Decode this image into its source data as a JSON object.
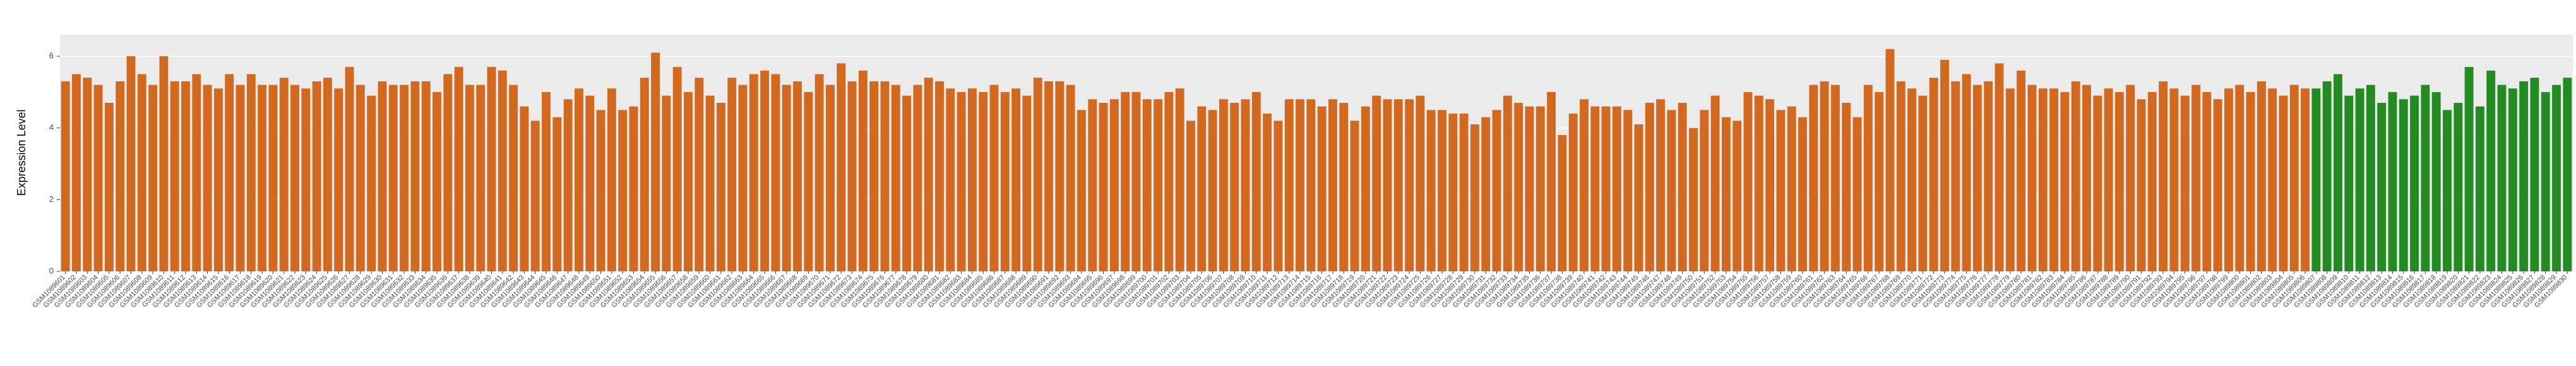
{
  "chart_data": {
    "type": "bar",
    "y_label": "Expression Level",
    "ylim": [
      0,
      6.6
    ],
    "yticks": [
      0,
      2,
      4,
      6
    ],
    "grid": true,
    "background": "#ebebeb",
    "series": [
      {
        "color": "#d2691e",
        "categories": [
          "GSM1089601",
          "GSM1089602",
          "GSM1089603",
          "GSM1089604",
          "GSM1089605",
          "GSM1089606",
          "GSM1089607",
          "GSM1089608",
          "GSM1089609",
          "GSM1089610",
          "GSM1089611",
          "GSM1089612",
          "GSM1089613",
          "GSM1089614",
          "GSM1089615",
          "GSM1089616",
          "GSM1089617",
          "GSM1089618",
          "GSM1089619",
          "GSM1089620",
          "GSM1089621",
          "GSM1089622",
          "GSM1089623",
          "GSM1089624",
          "GSM1089625",
          "GSM1089626",
          "GSM1089627",
          "GSM1089628",
          "GSM1089629",
          "GSM1089630",
          "GSM1089631",
          "GSM1089632",
          "GSM1089633",
          "GSM1089634",
          "GSM1089635",
          "GSM1089636",
          "GSM1089637",
          "GSM1089638",
          "GSM1089639",
          "GSM1089640",
          "GSM1089641",
          "GSM1089642",
          "GSM1089643",
          "GSM1089644",
          "GSM1089645",
          "GSM1089646",
          "GSM1089647",
          "GSM1089648",
          "GSM1089649",
          "GSM1089650",
          "GSM1089651",
          "GSM1089652",
          "GSM1089653",
          "GSM1089654",
          "GSM1089655",
          "GSM1089656",
          "GSM1089657",
          "GSM1089658",
          "GSM1089659",
          "GSM1089660",
          "GSM1089661",
          "GSM1089662",
          "GSM1089663",
          "GSM1089664",
          "GSM1089665",
          "GSM1089666",
          "GSM1089667",
          "GSM1089668",
          "GSM1089669",
          "GSM1089670",
          "GSM1089671",
          "GSM1089672",
          "GSM1089673",
          "GSM1089674",
          "GSM1089675",
          "GSM1089676",
          "GSM1089677",
          "GSM1089678",
          "GSM1089679",
          "GSM1089680",
          "GSM1089681",
          "GSM1089682",
          "GSM1089683",
          "GSM1089684",
          "GSM1089685",
          "GSM1089686",
          "GSM1089687",
          "GSM1089688",
          "GSM1089689",
          "GSM1089690",
          "GSM1089691",
          "GSM1089692",
          "GSM1089693",
          "GSM1089694",
          "GSM1089695",
          "GSM1089696",
          "GSM1089697",
          "GSM1089698",
          "GSM1089699",
          "GSM1089700",
          "GSM1089701",
          "GSM1089702",
          "GSM1089703",
          "GSM1089704",
          "GSM1089705",
          "GSM1089706",
          "GSM1089707",
          "GSM1089708",
          "GSM1089709",
          "GSM1089710",
          "GSM1089711",
          "GSM1089712",
          "GSM1089713",
          "GSM1089714",
          "GSM1089715",
          "GSM1089716",
          "GSM1089717",
          "GSM1089718",
          "GSM1089719",
          "GSM1089720",
          "GSM1089721",
          "GSM1089722",
          "GSM1089723",
          "GSM1089724",
          "GSM1089725",
          "GSM1089726",
          "GSM1089727",
          "GSM1089728",
          "GSM1089729",
          "GSM1089730",
          "GSM1089731",
          "GSM1089732",
          "GSM1089733",
          "GSM1089734",
          "GSM1089735",
          "GSM1089736",
          "GSM1089737",
          "GSM1089738",
          "GSM1089739",
          "GSM1089740",
          "GSM1089741",
          "GSM1089742",
          "GSM1089743",
          "GSM1089744",
          "GSM1089745",
          "GSM1089746",
          "GSM1089747",
          "GSM1089748",
          "GSM1089749",
          "GSM1089750",
          "GSM1089751",
          "GSM1089752",
          "GSM1089753",
          "GSM1089754",
          "GSM1089755",
          "GSM1089756",
          "GSM1089757",
          "GSM1089758",
          "GSM1089759",
          "GSM1089760",
          "GSM1089761",
          "GSM1089762",
          "GSM1089763",
          "GSM1089764",
          "GSM1089765",
          "GSM1089766",
          "GSM1089767",
          "GSM1089768",
          "GSM1089769",
          "GSM1089770",
          "GSM1089771",
          "GSM1089772",
          "GSM1089773",
          "GSM1089774",
          "GSM1089775",
          "GSM1089776",
          "GSM1089777",
          "GSM1089778",
          "GSM1089779",
          "GSM1089780",
          "GSM1089781",
          "GSM1089782",
          "GSM1089783",
          "GSM1089784",
          "GSM1089785",
          "GSM1089786",
          "GSM1089787",
          "GSM1089788",
          "GSM1089789",
          "GSM1089790",
          "GSM1089791",
          "GSM1089792",
          "GSM1089793",
          "GSM1089794",
          "GSM1089795",
          "GSM1089796",
          "GSM1089797",
          "GSM1089798",
          "GSM1089799",
          "GSM1089800",
          "GSM1089801",
          "GSM1089802",
          "GSM1089803",
          "GSM1089804",
          "GSM1089805",
          "GSM1089806"
        ],
        "values": [
          5.3,
          5.5,
          5.4,
          5.2,
          4.7,
          5.3,
          6.0,
          5.5,
          5.2,
          6.0,
          5.3,
          5.3,
          5.5,
          5.2,
          5.1,
          5.5,
          5.2,
          5.5,
          5.2,
          5.2,
          5.4,
          5.2,
          5.1,
          5.3,
          5.4,
          5.1,
          5.7,
          5.2,
          4.9,
          5.3,
          5.2,
          5.2,
          5.3,
          5.3,
          5.0,
          5.5,
          5.7,
          5.2,
          5.2,
          5.7,
          5.6,
          5.2,
          4.6,
          4.2,
          5.0,
          4.3,
          4.8,
          5.1,
          4.9,
          4.5,
          5.1,
          4.5,
          4.6,
          5.4,
          6.1,
          4.9,
          5.7,
          5.0,
          5.4,
          4.9,
          4.7,
          5.4,
          5.2,
          5.5,
          5.6,
          5.5,
          5.2,
          5.3,
          5.0,
          5.5,
          5.2,
          5.8,
          5.3,
          5.6,
          5.3,
          5.3,
          5.2,
          4.9,
          5.2,
          5.4,
          5.3,
          5.1,
          5.0,
          5.1,
          5.0,
          5.2,
          5.0,
          5.1,
          4.9,
          5.4,
          5.3,
          5.3,
          5.2,
          4.5,
          4.8,
          4.7,
          4.8,
          5.0,
          5.0,
          4.8,
          4.8,
          5.0,
          5.1,
          4.2,
          4.6,
          4.5,
          4.8,
          4.7,
          4.8,
          5.0,
          4.4,
          4.2,
          4.8,
          4.8,
          4.8,
          4.6,
          4.8,
          4.7,
          4.2,
          4.6,
          4.9,
          4.8,
          4.8,
          4.8,
          4.9,
          4.5,
          4.5,
          4.4,
          4.4,
          4.1,
          4.3,
          4.5,
          4.9,
          4.7,
          4.6,
          4.6,
          5.0,
          3.8,
          4.4,
          4.8,
          4.6,
          4.6,
          4.6,
          4.5,
          4.1,
          4.7,
          4.8,
          4.5,
          4.7,
          4.0,
          4.5,
          4.9,
          4.3,
          4.2,
          5.0,
          4.9,
          4.8,
          4.5,
          4.6,
          4.3,
          5.2,
          5.3,
          5.2,
          4.7,
          4.3,
          5.2,
          5.0,
          6.2,
          5.3,
          5.1,
          4.9,
          5.4,
          5.9,
          5.3,
          5.5,
          5.2,
          5.3,
          5.8,
          5.1,
          5.6,
          5.2,
          5.1,
          5.1,
          5.0,
          5.3,
          5.2,
          4.9,
          5.1,
          5.0,
          5.2,
          4.8,
          5.0,
          5.3,
          5.1,
          4.9,
          5.2,
          5.0,
          4.8,
          5.1,
          5.2,
          5.0,
          5.3,
          5.1,
          4.9,
          5.2,
          5.1
        ]
      },
      {
        "color": "#228b22",
        "categories": [
          "GSM1089807",
          "GSM1089808",
          "GSM1089809",
          "GSM1089810",
          "GSM1089811",
          "GSM1089812",
          "GSM1089813",
          "GSM1089814",
          "GSM1089815",
          "GSM1089816",
          "GSM1089817",
          "GSM1089818",
          "GSM1089819",
          "GSM1089820",
          "GSM1089821",
          "GSM1089822",
          "GSM1089823",
          "GSM1089824",
          "GSM1089825",
          "GSM1089826",
          "GSM1089827",
          "GSM1089828",
          "GSM1089829",
          "GSM1089830"
        ],
        "values": [
          5.1,
          5.3,
          5.5,
          4.9,
          5.1,
          5.2,
          4.7,
          5.0,
          4.8,
          4.9,
          5.2,
          5.0,
          4.5,
          4.7,
          5.7,
          4.6,
          5.6,
          5.2,
          5.1,
          5.3,
          5.4,
          5.0,
          5.2,
          5.4
        ]
      }
    ]
  }
}
